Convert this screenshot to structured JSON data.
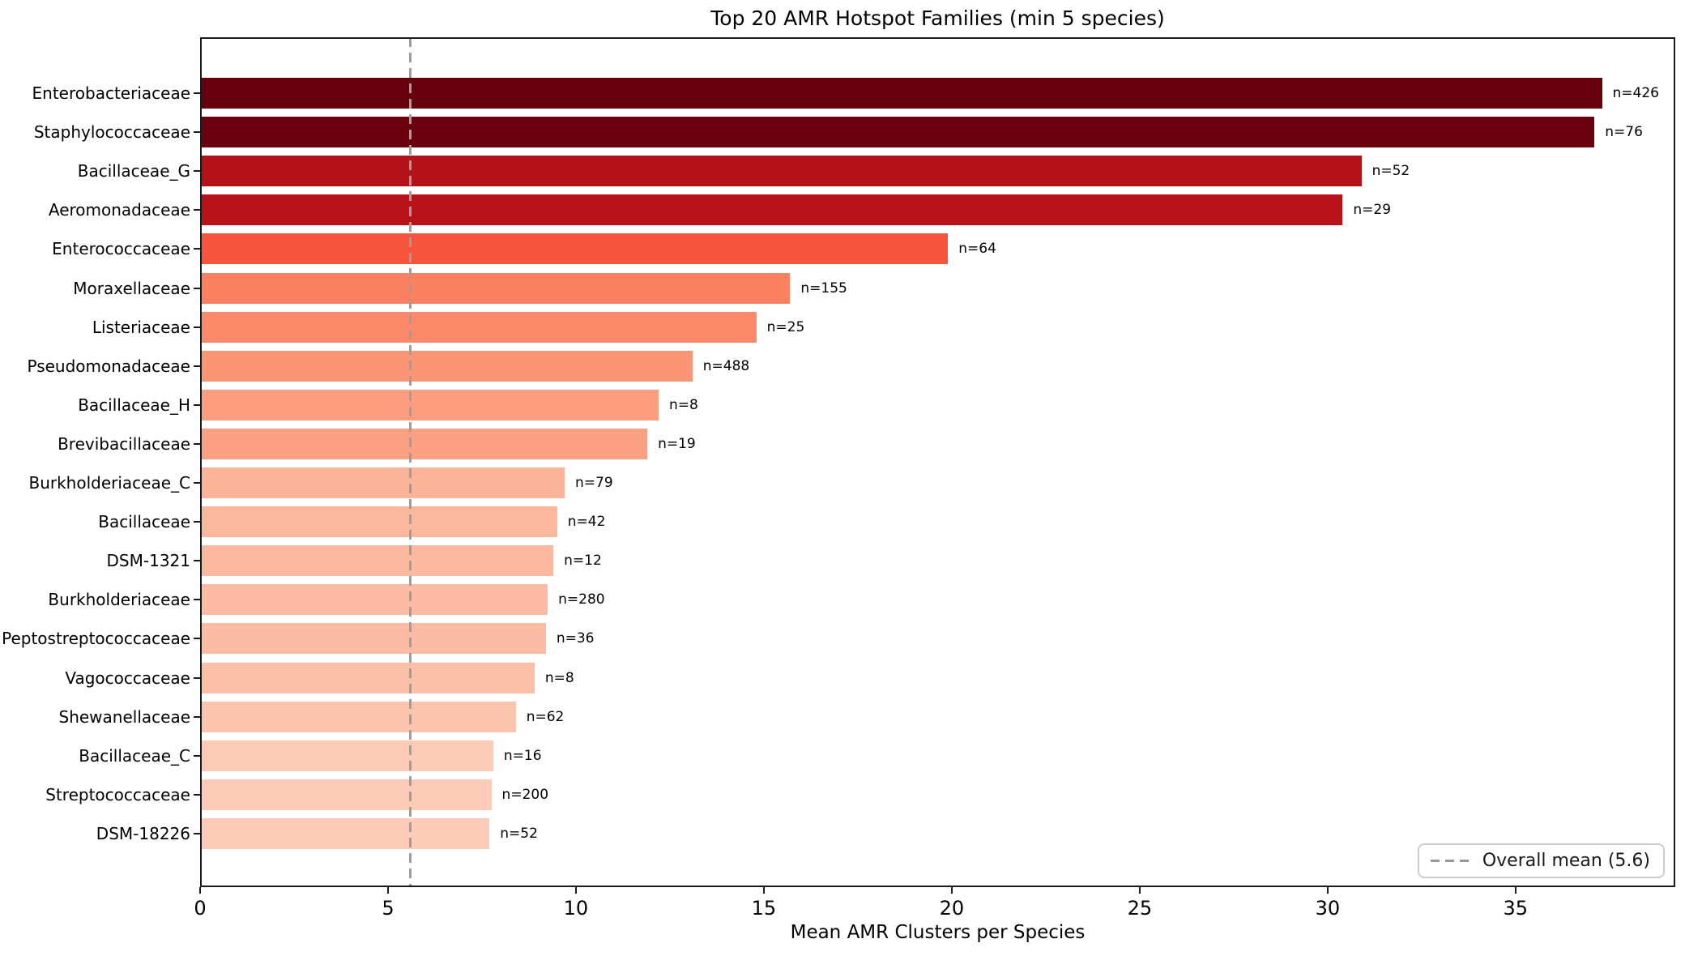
{
  "chart_data": {
    "type": "bar",
    "orientation": "horizontal",
    "title": "Top 20 AMR Hotspot Families (min 5 species)",
    "xlabel": "Mean AMR Clusters per Species",
    "ylabel": "",
    "xlim": [
      0,
      39.25
    ],
    "xticks": [
      0,
      5,
      10,
      15,
      20,
      25,
      30,
      35
    ],
    "grid": false,
    "legend_position": "lower-right",
    "legend_label": "Overall mean (5.6)",
    "mean_line": {
      "value": 5.6,
      "color": "#9e9e9e",
      "style": "dashed"
    },
    "bars": [
      {
        "family": "Enterobacteriaceae",
        "value": 37.3,
        "n": 426,
        "label": "n=426",
        "color": "#67000d"
      },
      {
        "family": "Staphylococcaceae",
        "value": 37.1,
        "n": 76,
        "label": "n=76",
        "color": "#6b010d"
      },
      {
        "family": "Bacillaceae_G",
        "value": 30.9,
        "n": 52,
        "label": "n=52",
        "color": "#b31218"
      },
      {
        "family": "Aeromonadaceae",
        "value": 30.4,
        "n": 29,
        "label": "n=29",
        "color": "#b71319"
      },
      {
        "family": "Enterococcaceae",
        "value": 19.9,
        "n": 64,
        "label": "n=64",
        "color": "#f6553c"
      },
      {
        "family": "Moraxellaceae",
        "value": 15.7,
        "n": 155,
        "label": "n=155",
        "color": "#fb8161"
      },
      {
        "family": "Listeriaceae",
        "value": 14.8,
        "n": 25,
        "label": "n=25",
        "color": "#fc8a6a"
      },
      {
        "family": "Pseudomonadaceae",
        "value": 13.1,
        "n": 488,
        "label": "n=488",
        "color": "#fc9576"
      },
      {
        "family": "Bacillaceae_H",
        "value": 12.2,
        "n": 8,
        "label": "n=8",
        "color": "#fc9d7f"
      },
      {
        "family": "Brevibacillaceae",
        "value": 11.9,
        "n": 19,
        "label": "n=19",
        "color": "#fca083"
      },
      {
        "family": "Burkholderiaceae_C",
        "value": 9.7,
        "n": 79,
        "label": "n=79",
        "color": "#fcb499"
      },
      {
        "family": "Bacillaceae",
        "value": 9.5,
        "n": 42,
        "label": "n=42",
        "color": "#fcb89d"
      },
      {
        "family": "DSM-1321",
        "value": 9.4,
        "n": 12,
        "label": "n=12",
        "color": "#fcb9a0"
      },
      {
        "family": "Burkholderiaceae",
        "value": 9.25,
        "n": 280,
        "label": "n=280",
        "color": "#fcbba2"
      },
      {
        "family": "Peptostreptococcaceae",
        "value": 9.2,
        "n": 36,
        "label": "n=36",
        "color": "#fcbca3"
      },
      {
        "family": "Vagococcaceae",
        "value": 8.9,
        "n": 8,
        "label": "n=8",
        "color": "#fcbfa7"
      },
      {
        "family": "Shewanellaceae",
        "value": 8.4,
        "n": 62,
        "label": "n=62",
        "color": "#fdc4ad"
      },
      {
        "family": "Bacillaceae_C",
        "value": 7.8,
        "n": 16,
        "label": "n=16",
        "color": "#fdcab6"
      },
      {
        "family": "Streptococcaceae",
        "value": 7.75,
        "n": 200,
        "label": "n=200",
        "color": "#fdcbb7"
      },
      {
        "family": "DSM-18226",
        "value": 7.7,
        "n": 52,
        "label": "n=52",
        "color": "#fdcbb8"
      }
    ]
  },
  "colors": {
    "background": "#ffffff",
    "spine": "#1a1a1a",
    "text": "#000000",
    "mean_line": "#9e9e9e",
    "legend_border": "#cccccc"
  }
}
